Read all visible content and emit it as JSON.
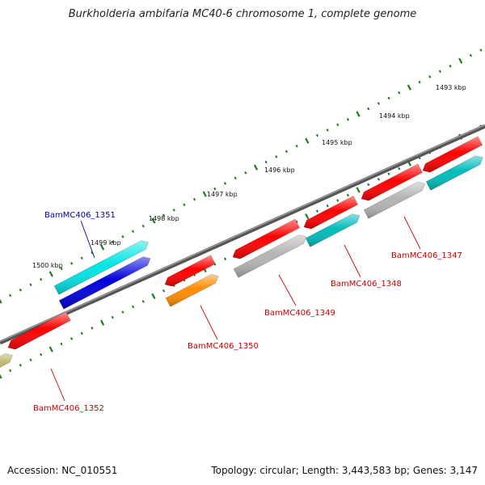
{
  "title": "Burkholderia ambifaria MC40-6 chromosome 1, complete genome",
  "footer": {
    "accession": "Accession: NC_010551",
    "summary": "Topology: circular; Length: 3,443,583 bp; Genes: 3,147"
  },
  "tick_labels": [
    "1493 kbp",
    "1494 kbp",
    "1495 kbp",
    "1496 kbp",
    "1497 kbp",
    "1498 kbp",
    "1499 kbp",
    "1500 kbp"
  ],
  "gene_labels": [
    "BamMC406_1347",
    "BamMC406_1348",
    "BamMC406_1349",
    "BamMC406_1350",
    "BamMC406_1351",
    "BamMC406_1352"
  ],
  "colors": {
    "red": "#ff0000",
    "cyan": "#00e5e5",
    "teal": "#00bcbc",
    "gray": "#b4b4b4",
    "blue": "#0000dd",
    "orange": "#ff8c00",
    "khaki": "#bdb76b",
    "backbone": "#777777",
    "tick": "#1f7a1f"
  }
}
